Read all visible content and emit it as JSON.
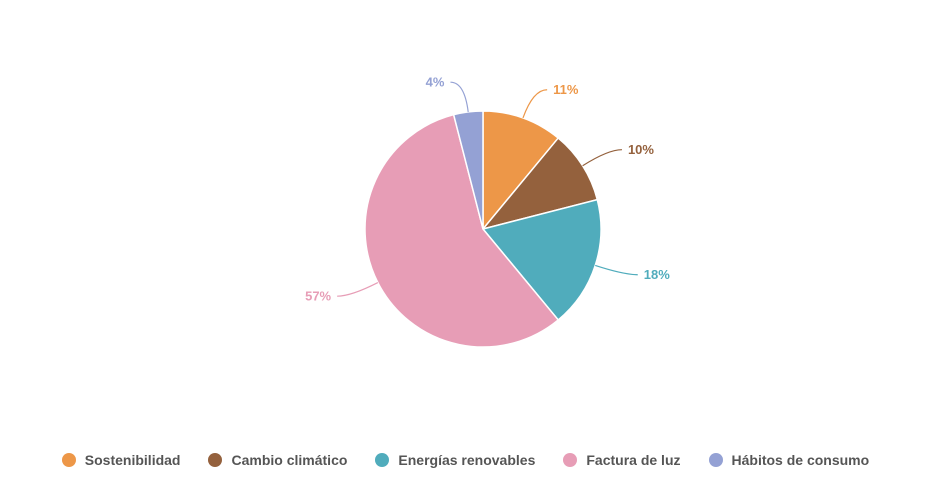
{
  "chart_data": {
    "type": "pie",
    "start_angle": "top, clockwise",
    "legend_position": "bottom",
    "slices": [
      {
        "label": "Sostenibilidad",
        "value": 11,
        "display": "11%",
        "color": "#ED9748"
      },
      {
        "label": "Cambio climático",
        "value": 10,
        "display": "10%",
        "color": "#94613D"
      },
      {
        "label": "Energías renovables",
        "value": 18,
        "display": "18%",
        "color": "#50ACBC"
      },
      {
        "label": "Factura de luz",
        "value": 57,
        "display": "57%",
        "color": "#E79DB6"
      },
      {
        "label": "Hábitos de consumo",
        "value": 4,
        "display": "4%",
        "color": "#94A1D4"
      }
    ]
  }
}
